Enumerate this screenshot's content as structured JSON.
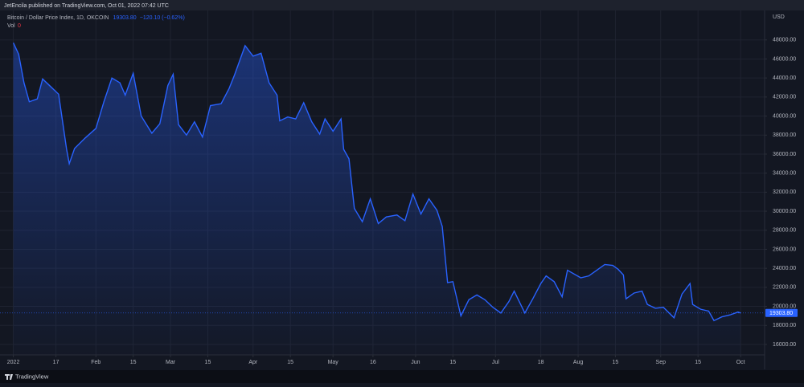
{
  "header": {
    "publisher": "JetEncila published on TradingView.com, Oct 01, 2022 07:42 UTC"
  },
  "legend": {
    "last": "19303.80",
    "change": "−120.10 (−0.62%)",
    "volume_label": "Vol",
    "volume_value": "0"
  },
  "footer": {
    "brand": "TradingView"
  },
  "chart_data": {
    "type": "area",
    "y_unit": "USD",
    "x": [
      "2022-01-01",
      "2022-01-03",
      "2022-01-05",
      "2022-01-07",
      "2022-01-10",
      "2022-01-12",
      "2022-01-15",
      "2022-01-18",
      "2022-01-21",
      "2022-01-22",
      "2022-01-24",
      "2022-01-28",
      "2022-02-01",
      "2022-02-04",
      "2022-02-07",
      "2022-02-10",
      "2022-02-12",
      "2022-02-15",
      "2022-02-18",
      "2022-02-22",
      "2022-02-25",
      "2022-02-28",
      "2022-03-02",
      "2022-03-04",
      "2022-03-07",
      "2022-03-10",
      "2022-03-13",
      "2022-03-16",
      "2022-03-20",
      "2022-03-23",
      "2022-03-25",
      "2022-03-29",
      "2022-04-01",
      "2022-04-04",
      "2022-04-07",
      "2022-04-10",
      "2022-04-11",
      "2022-04-14",
      "2022-04-17",
      "2022-04-20",
      "2022-04-23",
      "2022-04-26",
      "2022-04-28",
      "2022-05-01",
      "2022-05-04",
      "2022-05-05",
      "2022-05-07",
      "2022-05-09",
      "2022-05-12",
      "2022-05-15",
      "2022-05-18",
      "2022-05-21",
      "2022-05-25",
      "2022-05-28",
      "2022-05-31",
      "2022-06-03",
      "2022-06-06",
      "2022-06-09",
      "2022-06-11",
      "2022-06-13",
      "2022-06-15",
      "2022-06-18",
      "2022-06-21",
      "2022-06-24",
      "2022-06-27",
      "2022-06-30",
      "2022-07-03",
      "2022-07-06",
      "2022-07-08",
      "2022-07-12",
      "2022-07-15",
      "2022-07-18",
      "2022-07-20",
      "2022-07-23",
      "2022-07-26",
      "2022-07-28",
      "2022-08-02",
      "2022-08-05",
      "2022-08-08",
      "2022-08-11",
      "2022-08-14",
      "2022-08-16",
      "2022-08-18",
      "2022-08-19",
      "2022-08-22",
      "2022-08-25",
      "2022-08-27",
      "2022-08-30",
      "2022-09-02",
      "2022-09-06",
      "2022-09-09",
      "2022-09-12",
      "2022-09-13",
      "2022-09-16",
      "2022-09-19",
      "2022-09-21",
      "2022-09-24",
      "2022-09-27",
      "2022-09-30",
      "2022-10-01"
    ],
    "series": [
      {
        "name": "Bitcoin / Dollar Price Index, 1D, OKCOIN",
        "color": "#2962ff",
        "values": [
          47700,
          46500,
          43500,
          41500,
          41800,
          43900,
          43100,
          42300,
          36500,
          35000,
          36600,
          37700,
          38700,
          41500,
          44000,
          43500,
          42200,
          44500,
          40000,
          38200,
          39200,
          43200,
          44400,
          39100,
          38000,
          39400,
          37800,
          41100,
          41300,
          42900,
          44300,
          47400,
          46300,
          46600,
          43500,
          42200,
          39500,
          39900,
          39700,
          41400,
          39400,
          38100,
          39700,
          38400,
          39700,
          36500,
          35500,
          30300,
          28900,
          31300,
          28700,
          29400,
          29600,
          29000,
          31800,
          29700,
          31300,
          30100,
          28400,
          22500,
          22600,
          19000,
          20700,
          21200,
          20700,
          19900,
          19300,
          20500,
          21600,
          19300,
          20800,
          22400,
          23200,
          22600,
          21000,
          23800,
          23000,
          23200,
          23800,
          24400,
          24300,
          23900,
          23300,
          20800,
          21400,
          21600,
          20200,
          19800,
          19900,
          18800,
          21300,
          22400,
          20200,
          19700,
          19500,
          18500,
          18900,
          19100,
          19400,
          19303.8
        ]
      }
    ],
    "last_price": {
      "value": 19303.8,
      "label": "19303.80"
    },
    "xlim": [
      "2021-12-27",
      "2022-10-10"
    ],
    "xticks": [
      {
        "value": "2022-01-01",
        "label": "2022"
      },
      {
        "value": "2022-01-17",
        "label": "17"
      },
      {
        "value": "2022-02-01",
        "label": "Feb"
      },
      {
        "value": "2022-02-15",
        "label": "15"
      },
      {
        "value": "2022-03-01",
        "label": "Mar"
      },
      {
        "value": "2022-03-15",
        "label": "15"
      },
      {
        "value": "2022-04-01",
        "label": "Apr"
      },
      {
        "value": "2022-04-15",
        "label": "15"
      },
      {
        "value": "2022-05-01",
        "label": "May"
      },
      {
        "value": "2022-05-16",
        "label": "16"
      },
      {
        "value": "2022-06-01",
        "label": "Jun"
      },
      {
        "value": "2022-06-15",
        "label": "15"
      },
      {
        "value": "2022-07-01",
        "label": "Jul"
      },
      {
        "value": "2022-07-18",
        "label": "18"
      },
      {
        "value": "2022-08-01",
        "label": "Aug"
      },
      {
        "value": "2022-08-15",
        "label": "15"
      },
      {
        "value": "2022-09-01",
        "label": "Sep"
      },
      {
        "value": "2022-09-15",
        "label": "15"
      },
      {
        "value": "2022-10-01",
        "label": "Oct"
      }
    ],
    "ylim": [
      14900,
      51100
    ],
    "yticks": [
      {
        "value": 16000,
        "label": "16000.00"
      },
      {
        "value": 18000,
        "label": "18000.00"
      },
      {
        "value": 20000,
        "label": "20000.00"
      },
      {
        "value": 22000,
        "label": "22000.00"
      },
      {
        "value": 24000,
        "label": "24000.00"
      },
      {
        "value": 26000,
        "label": "26000.00"
      },
      {
        "value": 28000,
        "label": "28000.00"
      },
      {
        "value": 30000,
        "label": "30000.00"
      },
      {
        "value": 32000,
        "label": "32000.00"
      },
      {
        "value": 34000,
        "label": "34000.00"
      },
      {
        "value": 36000,
        "label": "36000.00"
      },
      {
        "value": 38000,
        "label": "38000.00"
      },
      {
        "value": 40000,
        "label": "40000.00"
      },
      {
        "value": 42000,
        "label": "42000.00"
      },
      {
        "value": 44000,
        "label": "44000.00"
      },
      {
        "value": 46000,
        "label": "46000.00"
      },
      {
        "value": 48000,
        "label": "48000.00"
      }
    ],
    "grid": true
  }
}
